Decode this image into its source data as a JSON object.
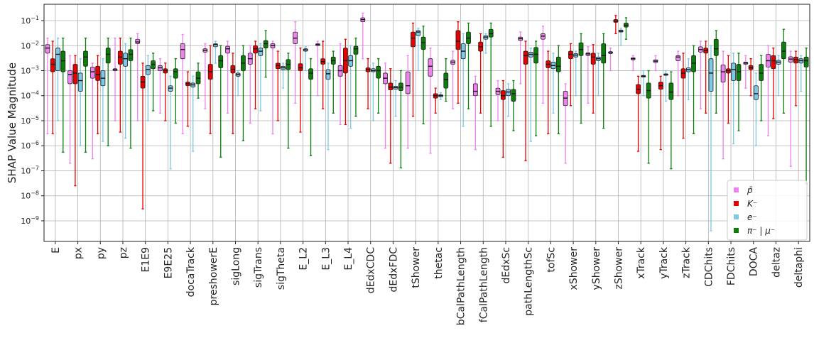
{
  "chart_data": {
    "type": "box",
    "title": "",
    "xlabel": "",
    "ylabel": "SHAP Value Magnitude",
    "yscale": "log",
    "ylim": [
      1.5e-10,
      0.45
    ],
    "y_ticks": [
      {
        "value": 1e-09,
        "base": "10",
        "exp": "−9"
      },
      {
        "value": 1e-08,
        "base": "10",
        "exp": "−8"
      },
      {
        "value": 1e-07,
        "base": "10",
        "exp": "−7"
      },
      {
        "value": 1e-06,
        "base": "10",
        "exp": "−6"
      },
      {
        "value": 1e-05,
        "base": "10",
        "exp": "−5"
      },
      {
        "value": 0.0001,
        "base": "10",
        "exp": "−4"
      },
      {
        "value": 0.001,
        "base": "10",
        "exp": "−3"
      },
      {
        "value": 0.01,
        "base": "10",
        "exp": "−2"
      },
      {
        "value": 0.1,
        "base": "10",
        "exp": "−1"
      }
    ],
    "grid": true,
    "legend_position": "lower-right",
    "categories": [
      "E",
      "px",
      "py",
      "pz",
      "E1E9",
      "E9E25",
      "docaTrack",
      "preshowerE",
      "sigLong",
      "sigTrans",
      "sigTheta",
      "E_L2",
      "E_L3",
      "E_L4",
      "dEdxCDC",
      "dEdxFDC",
      "tShower",
      "thetac",
      "bCalPathLength",
      "fCalPathLength",
      "dEdxSc",
      "pathLengthSc",
      "tofSc",
      "xShower",
      "yShower",
      "zShower",
      "xTrack",
      "yTrack",
      "zTrack",
      "CDChits",
      "FDChits",
      "DOCA",
      "deltaz",
      "deltaphi"
    ],
    "series": [
      {
        "name": "p̄",
        "color": "#ee82ee",
        "boxes": [
          [
            3e-06,
            0.005,
            0.008,
            0.011,
            0.02
          ],
          [
            2e-07,
            0.0003,
            0.0007,
            0.001,
            0.004
          ],
          [
            3e-07,
            0.0005,
            0.0009,
            0.0014,
            0.002
          ],
          [
            1e-05,
            0.001,
            0.0011,
            0.0012,
            0.02
          ],
          [
            1e-05,
            0.012,
            0.014,
            0.018,
            0.03
          ],
          [
            2e-05,
            0.001,
            0.0013,
            0.0016,
            0.003
          ],
          [
            3e-06,
            0.003,
            0.007,
            0.012,
            0.028
          ],
          [
            3e-05,
            0.0055,
            0.0065,
            0.0075,
            0.012
          ],
          [
            2e-05,
            0.005,
            0.0075,
            0.0095,
            0.015
          ],
          [
            8e-06,
            0.0018,
            0.003,
            0.005,
            0.01
          ],
          [
            3e-06,
            0.008,
            0.01,
            0.012,
            0.015
          ],
          [
            5e-05,
            0.012,
            0.02,
            0.035,
            0.09
          ],
          [
            0.0001,
            0.01,
            0.011,
            0.012,
            0.015
          ],
          [
            7e-06,
            0.0006,
            0.001,
            0.0016,
            0.012
          ],
          [
            0.003,
            0.09,
            0.11,
            0.13,
            0.2
          ],
          [
            8e-07,
            0.0003,
            0.0005,
            0.0008,
            0.002
          ],
          [
            8e-07,
            0.00012,
            0.00025,
            0.0009,
            0.004
          ],
          [
            5e-07,
            0.0006,
            0.0015,
            0.003,
            0.008
          ],
          [
            3e-05,
            0.0018,
            0.0022,
            0.0026,
            0.006
          ],
          [
            7e-07,
            0.0001,
            0.00015,
            0.0003,
            0.0006
          ],
          [
            1e-05,
            0.00011,
            0.00015,
            0.0002,
            0.0004
          ],
          [
            0.0003,
            0.016,
            0.019,
            0.022,
            0.035
          ],
          [
            5e-05,
            0.018,
            0.024,
            0.03,
            0.06
          ],
          [
            2e-07,
            4e-05,
            8e-05,
            0.00015,
            0.0003
          ],
          [
            5e-05,
            0.004,
            0.0047,
            0.0052,
            0.009
          ],
          [
            0.001,
            0.0048,
            0.0053,
            0.0058,
            0.008
          ],
          [
            0.001,
            0.0027,
            0.003,
            0.0033,
            0.004
          ],
          [
            0.001,
            0.0021,
            0.0024,
            0.0027,
            0.004
          ],
          [
            0.0001,
            0.0025,
            0.0035,
            0.004,
            0.006
          ],
          [
            3e-05,
            0.0055,
            0.007,
            0.009,
            0.015
          ],
          [
            3e-07,
            0.00035,
            0.0009,
            0.0017,
            0.006
          ],
          [
            0.0002,
            0.0018,
            0.002,
            0.0022,
            0.004
          ],
          [
            2.5e-06,
            0.0014,
            0.0025,
            0.0045,
            0.01
          ],
          [
            1.5e-07,
            0.0022,
            0.0029,
            0.0036,
            0.006
          ]
        ]
      },
      {
        "name": "K⁻",
        "color": "#e60000",
        "boxes": [
          [
            3e-06,
            0.0009,
            0.0018,
            0.003,
            0.015
          ],
          [
            2.5e-08,
            0.0003,
            0.0008,
            0.0018,
            0.004
          ],
          [
            3e-06,
            0.0004,
            0.0007,
            0.0015,
            0.004
          ],
          [
            3.5e-06,
            0.0018,
            0.0035,
            0.006,
            0.02
          ],
          [
            3e-09,
            0.0002,
            0.00035,
            0.0006,
            0.002
          ],
          [
            1e-05,
            0.0008,
            0.001,
            0.0012,
            0.002
          ],
          [
            6e-06,
            0.00025,
            0.0003,
            0.00035,
            0.0009
          ],
          [
            3e-06,
            0.00045,
            0.0009,
            0.0018,
            0.01
          ],
          [
            3e-06,
            0.0008,
            0.0011,
            0.0016,
            0.005
          ],
          [
            3e-05,
            0.005,
            0.0075,
            0.01,
            0.015
          ],
          [
            1e-05,
            0.0012,
            0.0016,
            0.002,
            0.006
          ],
          [
            3.5e-06,
            0.001,
            0.0013,
            0.0019,
            0.008
          ],
          [
            3e-05,
            0.0018,
            0.0023,
            0.003,
            0.015
          ],
          [
            7e-06,
            0.0008,
            0.0025,
            0.008,
            0.018
          ],
          [
            3e-05,
            0.0009,
            0.0011,
            0.0013,
            0.003
          ],
          [
            2e-07,
            0.00017,
            0.00022,
            0.00032,
            0.0012
          ],
          [
            1.5e-05,
            0.009,
            0.02,
            0.035,
            0.08
          ],
          [
            2e-05,
            8e-05,
            0.0001,
            0.00012,
            0.0002
          ],
          [
            5e-05,
            0.007,
            0.015,
            0.04,
            0.09
          ],
          [
            2e-05,
            0.006,
            0.009,
            0.014,
            0.03
          ],
          [
            3.5e-07,
            7e-05,
            0.0001,
            0.00016,
            0.0004
          ],
          [
            2.5e-07,
            0.0018,
            0.004,
            0.006,
            0.015
          ],
          [
            3e-06,
            0.0013,
            0.0018,
            0.0025,
            0.006
          ],
          [
            4e-05,
            0.003,
            0.0045,
            0.006,
            0.012
          ],
          [
            2e-05,
            0.0018,
            0.0035,
            0.005,
            0.011
          ],
          [
            0.03,
            0.085,
            0.095,
            0.11,
            0.16
          ],
          [
            6e-07,
            0.00012,
            0.00018,
            0.00028,
            0.0006
          ],
          [
            7e-07,
            0.00018,
            0.00025,
            0.00035,
            0.0006
          ],
          [
            2e-06,
            0.0005,
            0.0008,
            0.0012,
            0.005
          ],
          [
            2e-05,
            0.005,
            0.0065,
            0.008,
            0.015
          ],
          [
            8e-06,
            0.0008,
            0.001,
            0.0012,
            0.004
          ],
          [
            0.0001,
            0.0011,
            0.0013,
            0.0016,
            0.003
          ],
          [
            1.2e-05,
            0.0012,
            0.0025,
            0.004,
            0.008
          ],
          [
            4e-05,
            0.002,
            0.0028,
            0.0035,
            0.006
          ]
        ]
      },
      {
        "name": "e⁻",
        "color": "#7ec8e3",
        "boxes": [
          [
            1e-05,
            0.001,
            0.0045,
            0.008,
            0.02
          ],
          [
            1e-06,
            0.00015,
            0.0004,
            0.0008,
            0.003
          ],
          [
            1.5e-06,
            0.00025,
            0.0005,
            0.001,
            0.003
          ],
          [
            2e-06,
            0.0015,
            0.003,
            0.005,
            0.012
          ],
          [
            1e-05,
            0.0007,
            0.0011,
            0.0016,
            0.004
          ],
          [
            1.2e-07,
            0.00015,
            0.0002,
            0.00025,
            0.0006
          ],
          [
            6e-07,
            0.00022,
            0.00027,
            0.00032,
            0.0006
          ],
          [
            0.002,
            0.009,
            0.011,
            0.012,
            0.015
          ],
          [
            0.0001,
            0.0006,
            0.0007,
            0.0008,
            0.001
          ],
          [
            2.5e-05,
            0.004,
            0.006,
            0.008,
            0.012
          ],
          [
            0.0002,
            0.0011,
            0.0013,
            0.0015,
            0.002
          ],
          [
            0.001,
            0.006,
            0.0068,
            0.0075,
            0.009
          ],
          [
            7e-07,
            0.00045,
            0.00075,
            0.0011,
            0.002
          ],
          [
            5e-06,
            0.0015,
            0.0025,
            0.004,
            0.01
          ],
          [
            1e-05,
            0.0009,
            0.001,
            0.0012,
            0.002
          ],
          [
            1.5e-05,
            0.00018,
            0.00021,
            0.00024,
            0.0004
          ],
          [
            0.001,
            0.025,
            0.035,
            0.04,
            0.05
          ],
          [
            7e-05,
            9e-05,
            0.0001,
            0.00011,
            0.00013
          ],
          [
            6e-06,
            0.003,
            0.006,
            0.012,
            0.03
          ],
          [
            0.005,
            0.018,
            0.022,
            0.025,
            0.03
          ],
          [
            1.5e-05,
            0.0001,
            0.00014,
            0.00018,
            0.0003
          ],
          [
            1.5e-06,
            0.0035,
            0.0045,
            0.0055,
            0.008
          ],
          [
            2e-05,
            0.0012,
            0.0016,
            0.0022,
            0.005
          ],
          [
            0.0001,
            0.0035,
            0.0042,
            0.0048,
            0.006
          ],
          [
            0.0001,
            0.0025,
            0.003,
            0.0035,
            0.005
          ],
          [
            0.01,
            0.035,
            0.038,
            0.042,
            0.05
          ],
          [
            0.0001,
            0.00055,
            0.0006,
            0.00065,
            0.001
          ],
          [
            6e-05,
            0.00065,
            0.0007,
            0.00075,
            0.001
          ],
          [
            7e-05,
            0.0009,
            0.0011,
            0.0013,
            0.003
          ],
          [
            4e-10,
            0.00015,
            0.0008,
            0.003,
            0.01
          ],
          [
            1.2e-06,
            0.0004,
            0.0011,
            0.002,
            0.005
          ],
          [
            1e-06,
            7e-05,
            0.00012,
            0.00025,
            0.0008
          ],
          [
            0.0001,
            0.0018,
            0.0022,
            0.0026,
            0.004
          ],
          [
            0.00015,
            0.002,
            0.0025,
            0.003,
            0.004
          ]
        ]
      },
      {
        "name": "π⁻ | μ⁻",
        "color": "#0a7d0a",
        "boxes": [
          [
            5.5e-07,
            0.0009,
            0.0025,
            0.006,
            0.02
          ],
          [
            5.5e-07,
            0.0015,
            0.0035,
            0.006,
            0.02
          ],
          [
            1e-06,
            0.002,
            0.0045,
            0.008,
            0.02
          ],
          [
            8e-07,
            0.0025,
            0.0045,
            0.007,
            0.02
          ],
          [
            2.5e-05,
            0.0012,
            0.0018,
            0.0025,
            0.005
          ],
          [
            8e-06,
            0.0005,
            0.0009,
            0.0012,
            0.003
          ],
          [
            8e-05,
            0.0003,
            0.0005,
            0.0009,
            0.002
          ],
          [
            3.5e-07,
            0.0013,
            0.0025,
            0.004,
            0.01
          ],
          [
            1.6e-06,
            0.001,
            0.002,
            0.004,
            0.01
          ],
          [
            0.00055,
            0.008,
            0.012,
            0.016,
            0.04
          ],
          [
            8e-07,
            0.0011,
            0.0018,
            0.0028,
            0.005
          ],
          [
            4e-07,
            0.00045,
            0.0008,
            0.0012,
            0.003
          ],
          [
            2e-05,
            0.0018,
            0.0025,
            0.0035,
            0.006
          ],
          [
            1.5e-05,
            0.0045,
            0.0075,
            0.0095,
            0.02
          ],
          [
            2e-05,
            0.0005,
            0.001,
            0.0015,
            0.003
          ],
          [
            1.3e-07,
            0.00016,
            0.00022,
            0.00032,
            0.001
          ],
          [
            7.5e-06,
            0.007,
            0.013,
            0.022,
            0.06
          ],
          [
            6e-05,
            0.0002,
            0.00045,
            0.0008,
            0.003
          ],
          [
            3e-05,
            0.012,
            0.02,
            0.035,
            0.08
          ],
          [
            6e-06,
            0.022,
            0.03,
            0.045,
            0.08
          ],
          [
            4e-06,
            6e-05,
            0.00012,
            0.00018,
            0.0004
          ],
          [
            2.5e-06,
            0.002,
            0.0045,
            0.0085,
            0.015
          ],
          [
            3e-06,
            0.0009,
            0.0015,
            0.0035,
            0.01
          ],
          [
            8e-06,
            0.004,
            0.007,
            0.013,
            0.03
          ],
          [
            5e-06,
            0.002,
            0.004,
            0.012,
            0.03
          ],
          [
            0.018,
            0.055,
            0.065,
            0.08,
            0.13
          ],
          [
            2e-07,
            8e-05,
            0.00016,
            0.00032,
            0.001
          ],
          [
            1.2e-07,
            7e-05,
            0.00014,
            0.00032,
            0.0009
          ],
          [
            3e-06,
            0.0009,
            0.002,
            0.004,
            0.01
          ],
          [
            2e-05,
            0.004,
            0.0075,
            0.018,
            0.04
          ],
          [
            4e-06,
            0.0004,
            0.0009,
            0.0018,
            0.005
          ],
          [
            1e-05,
            0.0004,
            0.0008,
            0.0018,
            0.004
          ],
          [
            2e-05,
            0.003,
            0.006,
            0.014,
            0.045
          ],
          [
            3e-08,
            0.0014,
            0.0025,
            0.0035,
            0.008
          ]
        ]
      }
    ]
  }
}
